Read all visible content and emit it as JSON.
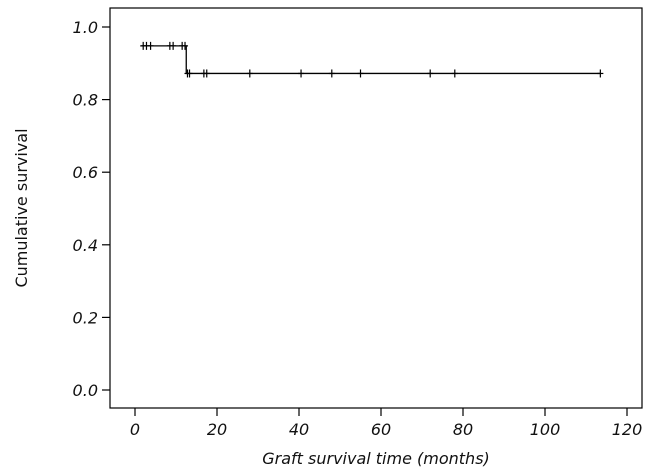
{
  "chart_data": {
    "type": "line",
    "subtype": "kaplan-meier-survival",
    "title": "",
    "xlabel": "Graft survival time (months)",
    "ylabel": "Cumulative survival",
    "xlim": [
      0,
      120
    ],
    "ylim": [
      0.0,
      1.0
    ],
    "xticks": [
      0,
      20,
      40,
      60,
      80,
      100,
      120
    ],
    "yticks": [
      0.0,
      0.2,
      0.4,
      0.6,
      0.8,
      1.0
    ],
    "xtick_labels": [
      "0",
      "20",
      "40",
      "60",
      "80",
      "100",
      "120"
    ],
    "ytick_labels": [
      "0.0",
      "0.2",
      "0.4",
      "0.6",
      "0.8",
      "1.0"
    ],
    "grid": false,
    "legend": "none",
    "series": [
      {
        "step_curve": [
          {
            "x": 1.5,
            "y": 0.948
          },
          {
            "x": 12.5,
            "y": 0.948
          },
          {
            "x": 12.5,
            "y": 0.872
          },
          {
            "x": 113.5,
            "y": 0.872
          }
        ],
        "censored": [
          {
            "x": 2.0,
            "y": 0.948
          },
          {
            "x": 2.8,
            "y": 0.948
          },
          {
            "x": 3.8,
            "y": 0.948
          },
          {
            "x": 8.5,
            "y": 0.948
          },
          {
            "x": 9.3,
            "y": 0.948
          },
          {
            "x": 11.5,
            "y": 0.948
          },
          {
            "x": 12.2,
            "y": 0.948
          },
          {
            "x": 12.8,
            "y": 0.872
          },
          {
            "x": 13.3,
            "y": 0.872
          },
          {
            "x": 16.8,
            "y": 0.872
          },
          {
            "x": 17.5,
            "y": 0.872
          },
          {
            "x": 28.0,
            "y": 0.872
          },
          {
            "x": 40.5,
            "y": 0.872
          },
          {
            "x": 48.0,
            "y": 0.872
          },
          {
            "x": 55.0,
            "y": 0.872
          },
          {
            "x": 72.0,
            "y": 0.872
          },
          {
            "x": 78.0,
            "y": 0.872
          },
          {
            "x": 113.5,
            "y": 0.872
          }
        ]
      }
    ]
  }
}
